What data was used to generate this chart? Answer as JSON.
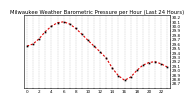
{
  "title": "Milwaukee Weather Barometric Pressure per Hour (Last 24 Hours)",
  "hours": [
    0,
    1,
    2,
    3,
    4,
    5,
    6,
    7,
    8,
    9,
    10,
    11,
    12,
    13,
    14,
    15,
    16,
    17,
    18,
    19,
    20,
    21,
    22,
    23
  ],
  "pressure": [
    29.55,
    29.6,
    29.72,
    29.88,
    30.0,
    30.08,
    30.1,
    30.05,
    29.95,
    29.82,
    29.68,
    29.55,
    29.42,
    29.28,
    29.05,
    28.88,
    28.78,
    28.85,
    29.0,
    29.12,
    29.18,
    29.2,
    29.15,
    29.08
  ],
  "line_color": "#dd0000",
  "marker_color": "#000000",
  "bg_color": "#ffffff",
  "grid_color": "#999999",
  "title_color": "#000000",
  "ylim": [
    28.6,
    30.25
  ],
  "xlim": [
    -0.5,
    23.5
  ],
  "title_fontsize": 3.8,
  "tick_fontsize": 3.0,
  "linewidth": 0.8,
  "markersize": 1.2,
  "yticks": [
    28.7,
    28.8,
    28.9,
    29.0,
    29.1,
    29.2,
    29.3,
    29.4,
    29.5,
    29.6,
    29.7,
    29.8,
    29.9,
    30.0,
    30.1,
    30.2
  ],
  "xtick_every": 1
}
